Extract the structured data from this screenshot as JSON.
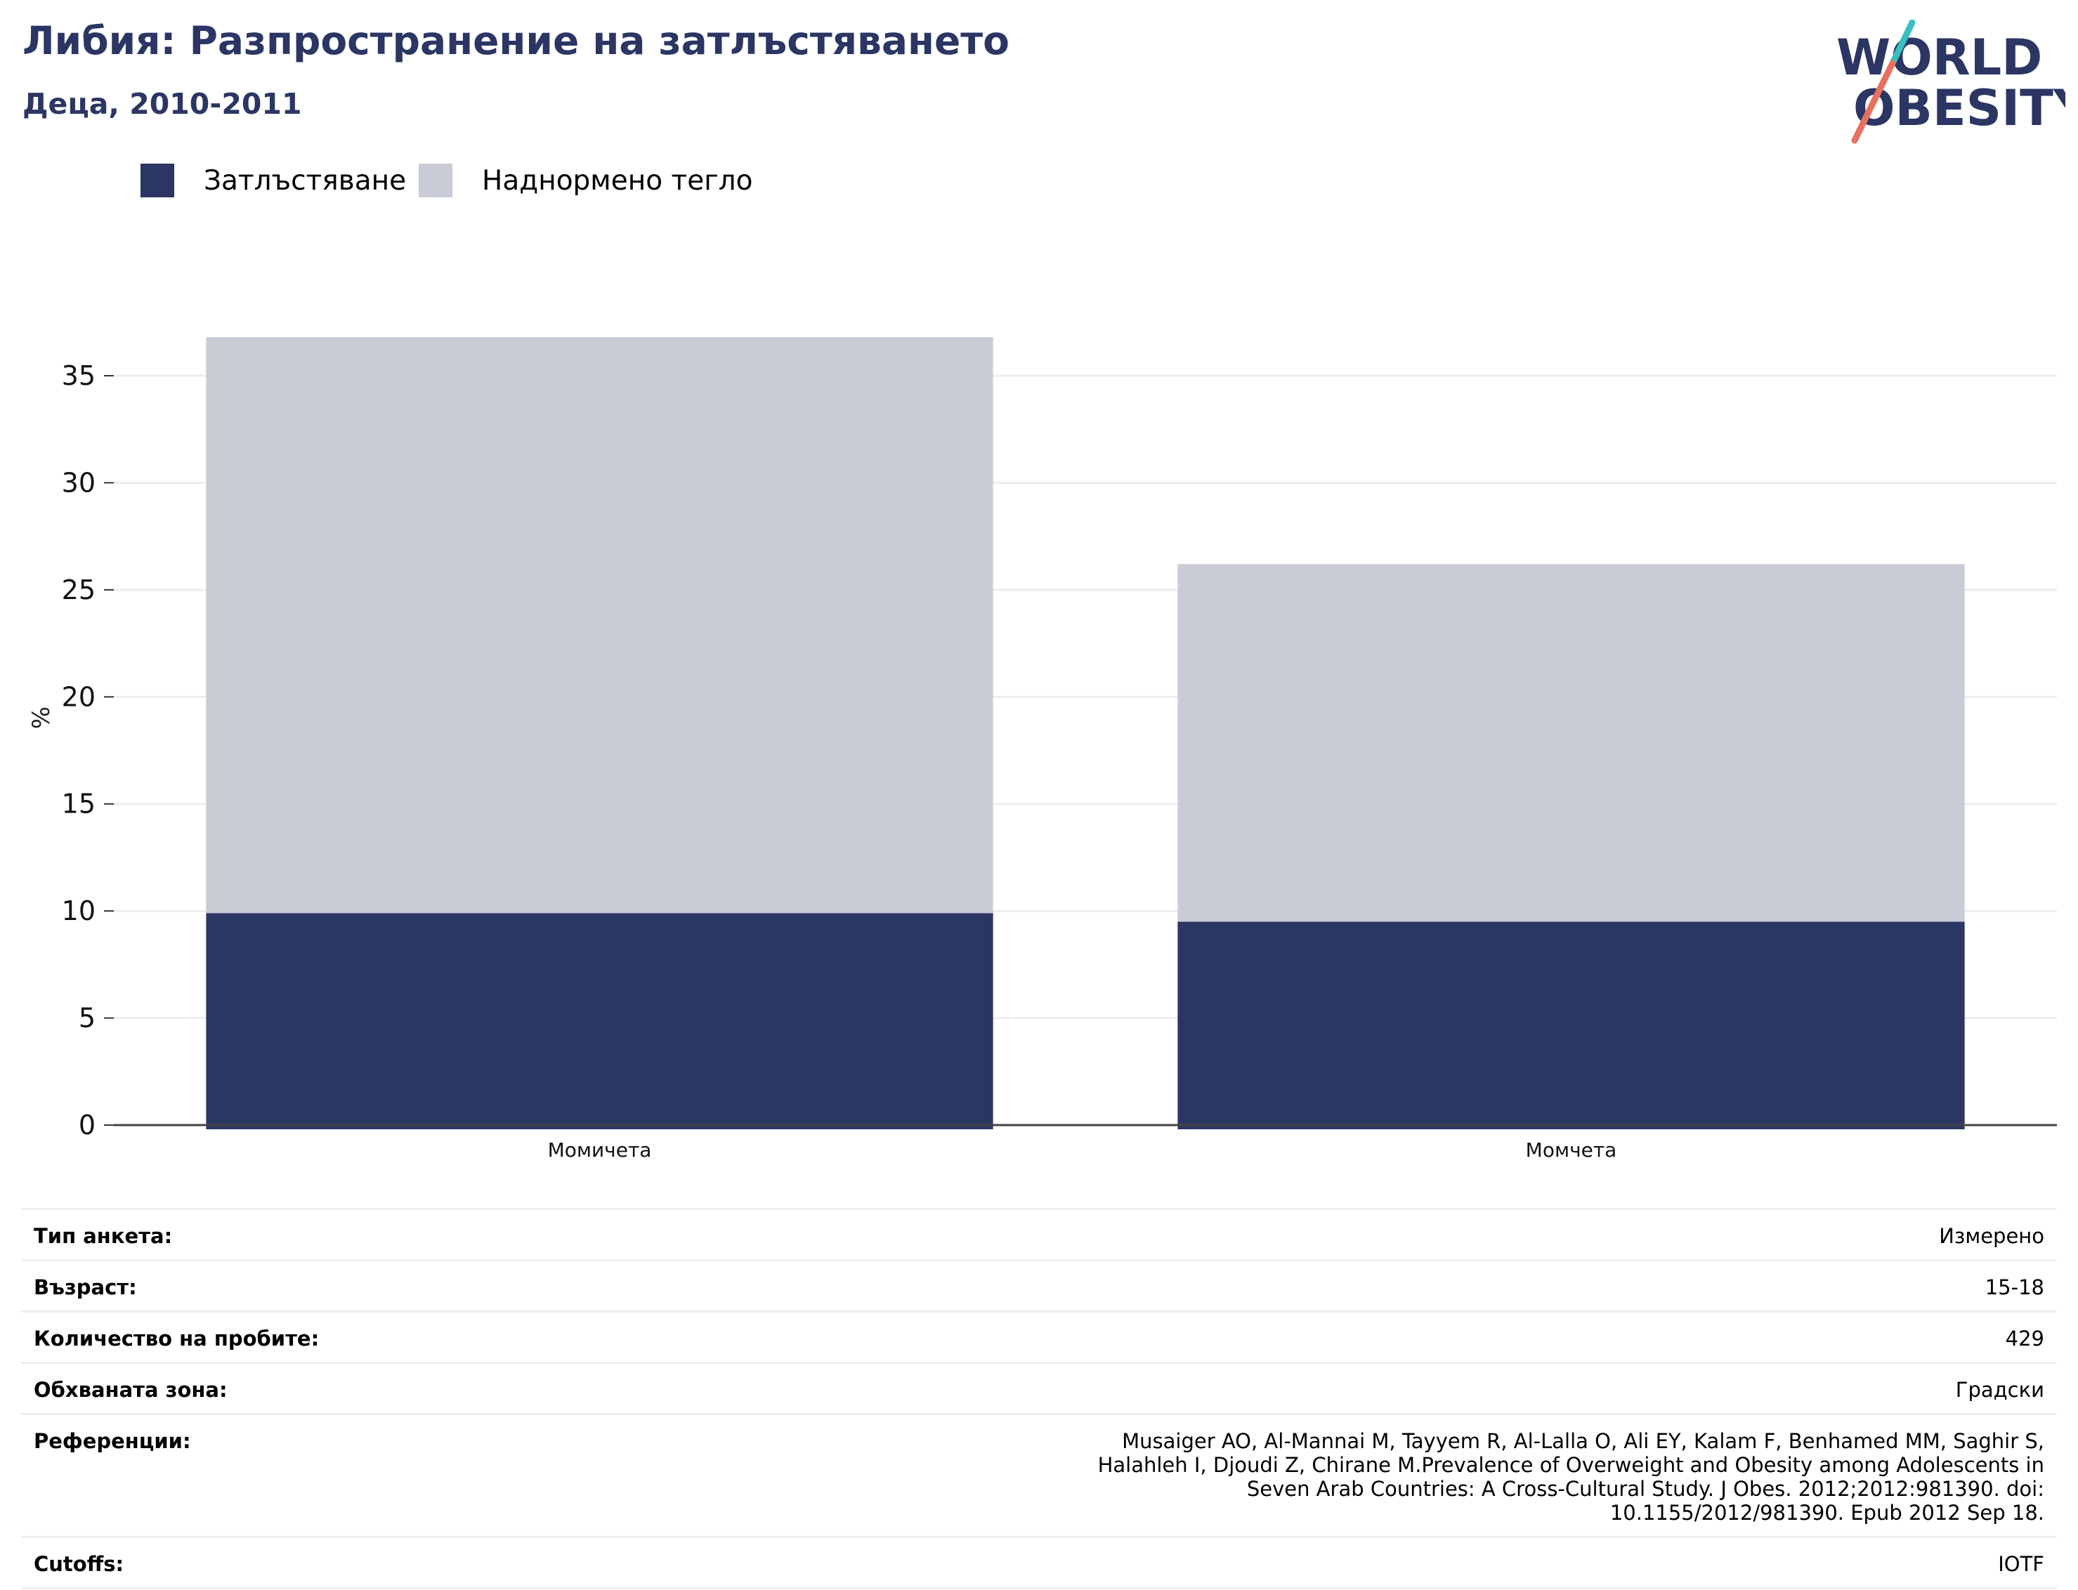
{
  "header": {
    "title": "Либия: Разпространение на затлъстяването",
    "subtitle": "Деца, 2010-2011"
  },
  "logo": {
    "line1": "WORLD",
    "line2": "OBESITY",
    "text_color": "#2b3664",
    "slash_top": "#3bbfbf",
    "slash_bottom": "#e8705f"
  },
  "legend": [
    {
      "label": "Затлъстяване",
      "color": "#2b3664"
    },
    {
      "label": "Наднормено тегло",
      "color": "#c9cbd7"
    }
  ],
  "chart_data": {
    "type": "bar",
    "stacked": true,
    "categories": [
      "Момичета",
      "Момчета"
    ],
    "series": [
      {
        "name": "Затлъстяване",
        "color": "#2b3664",
        "values": [
          9.9,
          9.5
        ]
      },
      {
        "name": "Наднормено тегло",
        "color": "#c9cbd7",
        "values": [
          26.9,
          16.7
        ]
      }
    ],
    "title": "",
    "xlabel": "",
    "ylabel": "%",
    "ylim": [
      0,
      37.5
    ],
    "yticks": [
      0,
      5,
      10,
      15,
      20,
      25,
      30,
      35
    ],
    "grid": true,
    "legend_position": "top-left"
  },
  "info": [
    {
      "key": "Тип анкета:",
      "value": "Измерено"
    },
    {
      "key": "Възраст:",
      "value": "15-18"
    },
    {
      "key": "Количество на пробите:",
      "value": "429"
    },
    {
      "key": "Обхваната зона:",
      "value": "Градски"
    },
    {
      "key": "Референции:",
      "value": "Musaiger AO, Al-Mannai M, Tayyem R, Al-Lalla O, Ali EY, Kalam F, Benhamed MM, Saghir S, Halahleh I, Djoudi Z, Chirane M.Prevalence of Overweight and Obesity among Adolescents in Seven Arab Countries: A Cross-Cultural Study. J Obes. 2012;2012:981390. doi: 10.1155/2012/981390. Epub 2012 Sep 18."
    },
    {
      "key": "Cutoffs:",
      "value": "IOTF"
    }
  ]
}
